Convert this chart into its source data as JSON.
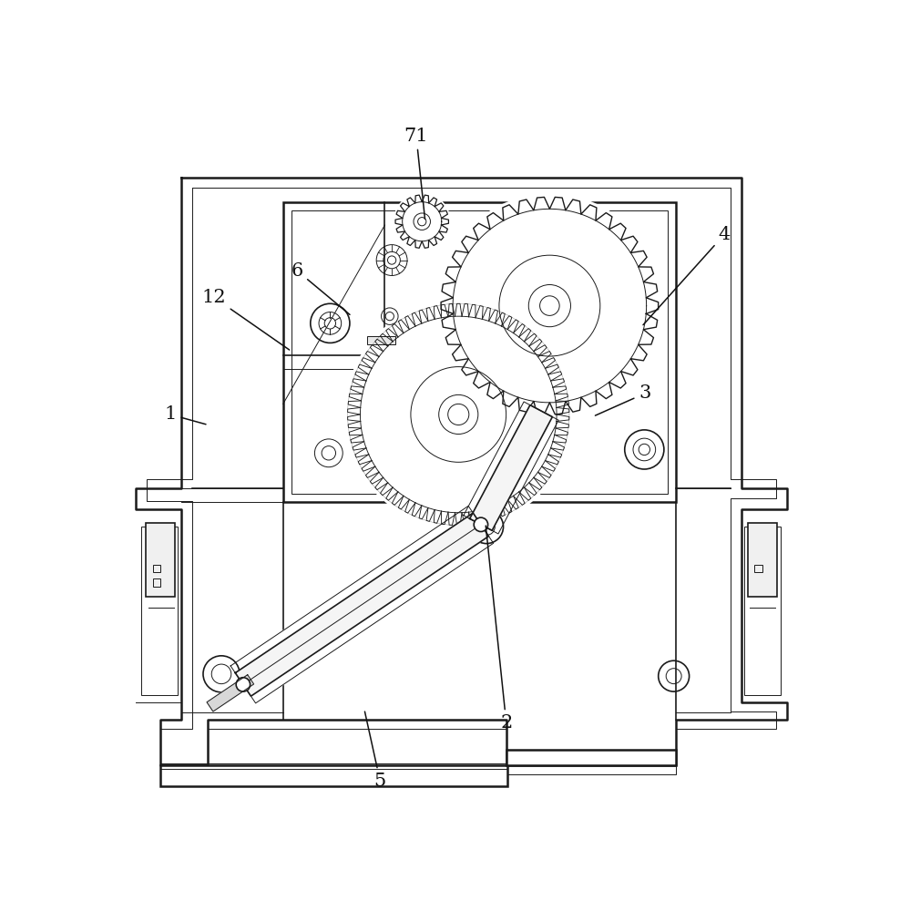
{
  "bg_color": "#ffffff",
  "line_color": "#1a1a1a",
  "lw_main": 1.8,
  "lw_med": 1.2,
  "lw_thin": 0.7,
  "labels_info": {
    "71": {
      "lpos": [
        0.435,
        0.038
      ],
      "apos": [
        0.448,
        0.16
      ]
    },
    "4": {
      "lpos": [
        0.88,
        0.178
      ],
      "apos": [
        0.76,
        0.31
      ]
    },
    "3": {
      "lpos": [
        0.765,
        0.405
      ],
      "apos": [
        0.69,
        0.438
      ]
    },
    "6": {
      "lpos": [
        0.263,
        0.23
      ],
      "apos": [
        0.342,
        0.295
      ]
    },
    "12": {
      "lpos": [
        0.143,
        0.268
      ],
      "apos": [
        0.255,
        0.345
      ]
    },
    "1": {
      "lpos": [
        0.08,
        0.435
      ],
      "apos": [
        0.135,
        0.45
      ]
    },
    "2": {
      "lpos": [
        0.565,
        0.875
      ],
      "apos": [
        0.535,
        0.59
      ]
    },
    "5": {
      "lpos": [
        0.383,
        0.958
      ],
      "apos": [
        0.36,
        0.855
      ]
    }
  }
}
